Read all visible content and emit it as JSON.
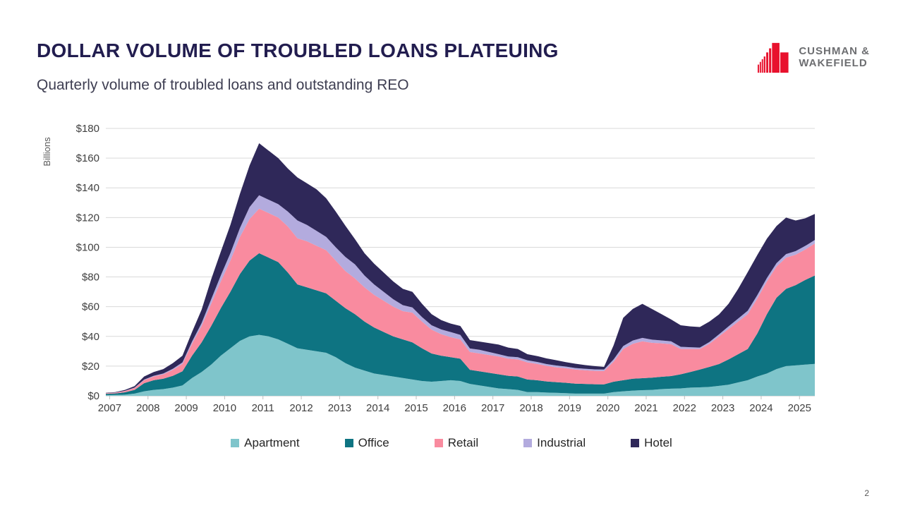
{
  "header": {
    "title": "DOLLAR VOLUME OF TROUBLED LOANS PLATEUING",
    "subtitle": "Quarterly volume of troubled loans and outstanding REO",
    "logo": {
      "line1": "CUSHMAN &",
      "line2": "WAKEFIELD",
      "brand_red": "#e8112d",
      "brand_gray": "#6d6e71"
    }
  },
  "footer": {
    "page_number": "2"
  },
  "chart_data": {
    "type": "area",
    "stacked": true,
    "ylabel": "Billions",
    "y_prefix": "$",
    "ylim": [
      0,
      180
    ],
    "y_step": 20,
    "grid": "horizontal",
    "legend_position": "bottom",
    "x_years": [
      "2007",
      "2008",
      "2009",
      "2010",
      "2011",
      "2012",
      "2013",
      "2014",
      "2015",
      "2016",
      "2017",
      "2018",
      "2019",
      "2020",
      "2021",
      "2022",
      "2023",
      "2024",
      "2025"
    ],
    "points_per_year": 4,
    "x_range": "2007 Q1 - 2025 Q3 (quarterly)",
    "series": [
      {
        "name": "Apartment",
        "color": "#7fc5cb",
        "values": [
          0.5,
          0.6,
          0.8,
          1.5,
          3,
          4,
          4.5,
          5.5,
          7,
          12,
          16,
          21,
          27,
          32,
          37,
          40,
          41,
          40,
          38,
          35,
          32,
          31,
          30,
          29,
          26,
          22,
          19,
          17,
          15,
          14,
          13,
          12,
          11,
          10,
          9.5,
          10,
          10.5,
          10,
          8,
          7,
          6,
          5,
          4.5,
          4,
          2.5,
          2.5,
          2.2,
          2,
          1.8,
          1.5,
          1.5,
          1.5,
          1.5,
          2.5,
          3,
          3.5,
          3.8,
          4,
          4.5,
          4.8,
          5,
          5.5,
          5.7,
          6,
          6.7,
          7.5,
          9,
          10.5,
          13,
          15,
          18,
          20,
          20.5,
          21,
          21.5
        ]
      },
      {
        "name": "Office",
        "color": "#0e7482",
        "values": [
          0.8,
          1,
          1.6,
          2.5,
          5.5,
          6.5,
          7,
          8,
          9.5,
          15,
          20,
          26,
          32,
          38,
          45,
          51,
          55,
          53,
          52,
          48,
          43,
          42,
          41,
          40,
          38,
          37,
          36,
          33,
          31,
          29,
          27,
          26,
          25,
          22,
          19,
          17,
          15.5,
          15,
          9.5,
          9.5,
          9.5,
          9.5,
          9,
          9,
          8.5,
          8,
          7.5,
          7.2,
          7,
          6.7,
          6.5,
          6.3,
          6.2,
          7,
          7.5,
          8,
          8.1,
          8.2,
          8.3,
          8.5,
          9.5,
          10.5,
          12,
          13.5,
          14.7,
          17,
          19,
          21,
          29,
          40,
          48,
          52,
          54,
          57,
          59.5
        ]
      },
      {
        "name": "Retail",
        "color": "#f98b9f",
        "values": [
          0.4,
          0.5,
          0.8,
          1.2,
          2,
          2.5,
          3,
          4,
          5,
          8,
          11,
          15,
          18,
          21,
          25,
          28,
          30,
          30,
          30,
          31,
          31,
          31,
          30,
          29,
          27,
          25,
          24,
          23,
          22,
          21,
          20,
          19,
          20,
          18,
          16,
          14.5,
          13.5,
          13,
          12,
          12,
          12,
          12,
          11.5,
          11.5,
          11.5,
          11,
          10.5,
          10,
          9.8,
          9.5,
          9.2,
          9,
          9,
          13.5,
          21,
          23.5,
          24.8,
          23.5,
          22.5,
          21.5,
          17,
          15.5,
          13.8,
          15.5,
          18.6,
          20.5,
          22,
          23.5,
          23.5,
          22,
          21,
          21,
          20.5,
          20.5,
          21.5
        ]
      },
      {
        "name": "Industrial",
        "color": "#b3abde",
        "values": [
          0.1,
          0.1,
          0.2,
          0.3,
          0.4,
          0.5,
          0.5,
          0.7,
          1,
          1.5,
          2,
          3,
          4,
          5,
          6,
          8,
          9,
          9,
          9,
          10,
          12,
          11,
          10,
          9,
          9,
          9.5,
          9.5,
          8,
          7,
          6,
          5,
          4,
          3.5,
          3,
          3,
          3.2,
          3.4,
          3,
          2.4,
          2.5,
          2,
          1.5,
          1.5,
          1.5,
          1.4,
          1.3,
          1.2,
          1.2,
          1.1,
          1,
          1,
          1,
          1,
          1.5,
          2,
          2.2,
          2.3,
          2.1,
          2,
          1.9,
          1.5,
          1.2,
          1,
          1.2,
          1.4,
          1.8,
          2,
          2.3,
          2.3,
          2.3,
          2.3,
          2.4,
          2.4,
          2.4,
          2.4
        ]
      },
      {
        "name": "Hotel",
        "color": "#2f2859",
        "values": [
          0.2,
          0.3,
          0.6,
          1,
          2.1,
          2.5,
          3,
          3.8,
          4.5,
          6.5,
          9,
          13.5,
          16,
          19,
          23,
          28,
          35,
          33,
          31,
          29,
          29,
          28,
          28,
          26,
          24,
          21,
          17,
          15,
          14,
          13,
          12,
          11,
          10.5,
          9,
          7.5,
          6.3,
          5.7,
          6,
          5.6,
          5.5,
          6,
          6.5,
          6,
          5.5,
          4.1,
          4,
          3.8,
          3.6,
          3,
          2.9,
          2.5,
          2.2,
          1.8,
          9.5,
          19,
          21.3,
          22.9,
          20.7,
          17.7,
          14.7,
          14.5,
          14,
          13.8,
          13.8,
          13.4,
          15.2,
          20,
          26,
          27,
          26.5,
          25,
          24.6,
          20.6,
          18.6,
          17.5
        ]
      }
    ],
    "colors": {
      "grid": "#d9d9d9",
      "axis": "#bfbfbf",
      "tick_label": "#404040",
      "axis_title": "#595959"
    }
  }
}
